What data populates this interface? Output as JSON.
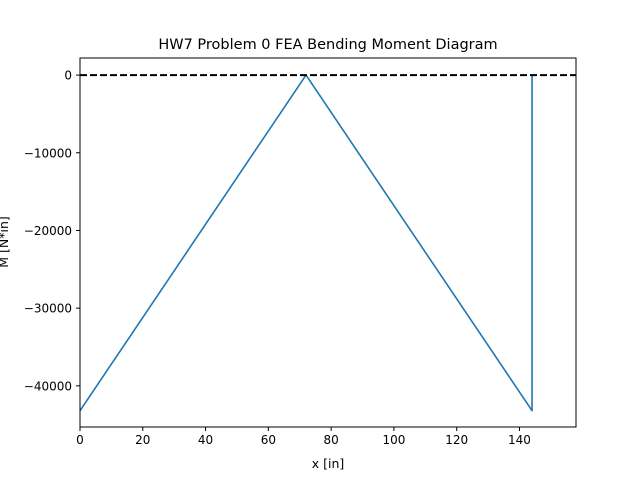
{
  "chart_data": {
    "type": "line",
    "title": "HW7 Problem 0 FEA Bending Moment Diagram",
    "xlabel": "x [in]",
    "ylabel": "M [N*in]",
    "xlim": [
      0,
      158
    ],
    "ylim": [
      -45300,
      2200
    ],
    "xticks": [
      0,
      20,
      40,
      60,
      80,
      100,
      120,
      140
    ],
    "xtick_labels": [
      "0",
      "20",
      "40",
      "60",
      "80",
      "100",
      "120",
      "140"
    ],
    "yticks": [
      0,
      -10000,
      -20000,
      -30000,
      -40000
    ],
    "ytick_labels": [
      "0",
      "−10000",
      "−20000",
      "−30000",
      "−40000"
    ],
    "grid": false,
    "legend": "none",
    "series": [
      {
        "color": "#1f77b4",
        "style": "solid",
        "x": [
          0,
          72,
          144,
          144
        ],
        "y": [
          -43200,
          0,
          -43200,
          0
        ]
      },
      {
        "color": "#000000",
        "style": "dashed",
        "x": [
          0,
          158
        ],
        "y": [
          0,
          0
        ]
      }
    ]
  }
}
